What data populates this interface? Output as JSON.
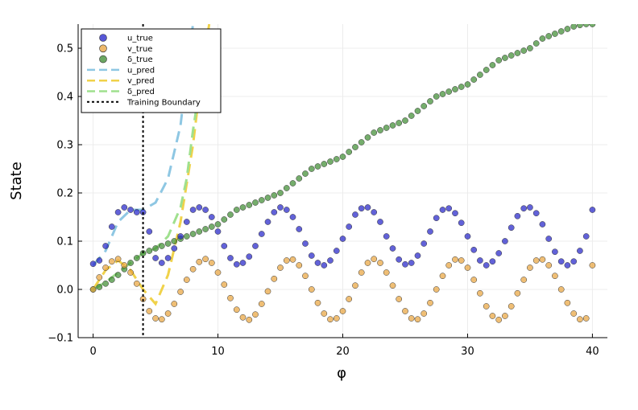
{
  "chart_data": {
    "type": "scatter",
    "title": "",
    "xlabel": "φ",
    "ylabel": "State",
    "xlim": [
      -1.2,
      41.2
    ],
    "ylim": [
      -0.1,
      0.55
    ],
    "xticks": [
      0,
      10,
      20,
      30,
      40
    ],
    "xtick_labels": [
      "0",
      "10",
      "20",
      "30",
      "40"
    ],
    "yticks": [
      -0.1,
      0.0,
      0.1,
      0.2,
      0.3,
      0.4,
      0.5
    ],
    "ytick_labels": [
      "−0.1",
      "0.0",
      "0.1",
      "0.2",
      "0.3",
      "0.4",
      "0.5"
    ],
    "grid": true,
    "legend_position": "top-left",
    "training_boundary_x": 4.0,
    "series": [
      {
        "name": "u_true",
        "kind": "scatter",
        "color": "#1f1fc8",
        "points": [
          [
            0,
            0.053
          ],
          [
            0.5,
            0.06
          ],
          [
            1.0,
            0.09
          ],
          [
            1.5,
            0.13
          ],
          [
            2.0,
            0.16
          ],
          [
            2.5,
            0.17
          ],
          [
            3.0,
            0.165
          ],
          [
            3.5,
            0.16
          ],
          [
            4.0,
            0.16
          ],
          [
            4.5,
            0.12
          ],
          [
            5.0,
            0.065
          ],
          [
            5.5,
            0.055
          ],
          [
            6.0,
            0.065
          ],
          [
            6.5,
            0.085
          ],
          [
            7.0,
            0.11
          ],
          [
            7.5,
            0.14
          ],
          [
            8.0,
            0.165
          ],
          [
            8.5,
            0.17
          ],
          [
            9.0,
            0.165
          ],
          [
            9.5,
            0.15
          ],
          [
            10.0,
            0.12
          ],
          [
            10.5,
            0.09
          ],
          [
            11.0,
            0.065
          ],
          [
            11.5,
            0.052
          ],
          [
            12.0,
            0.055
          ],
          [
            12.5,
            0.068
          ],
          [
            13.0,
            0.09
          ],
          [
            13.5,
            0.115
          ],
          [
            14.0,
            0.14
          ],
          [
            14.5,
            0.16
          ],
          [
            15.0,
            0.17
          ],
          [
            15.5,
            0.165
          ],
          [
            16.0,
            0.15
          ],
          [
            16.5,
            0.125
          ],
          [
            17.0,
            0.095
          ],
          [
            17.5,
            0.07
          ],
          [
            18.0,
            0.055
          ],
          [
            18.5,
            0.05
          ],
          [
            19.0,
            0.06
          ],
          [
            19.5,
            0.08
          ],
          [
            20.0,
            0.105
          ],
          [
            20.5,
            0.13
          ],
          [
            21.0,
            0.155
          ],
          [
            21.5,
            0.168
          ],
          [
            22.0,
            0.17
          ],
          [
            22.5,
            0.16
          ],
          [
            23.0,
            0.14
          ],
          [
            23.5,
            0.11
          ],
          [
            24.0,
            0.085
          ],
          [
            24.5,
            0.062
          ],
          [
            25.0,
            0.052
          ],
          [
            25.5,
            0.055
          ],
          [
            26.0,
            0.07
          ],
          [
            26.5,
            0.095
          ],
          [
            27.0,
            0.12
          ],
          [
            27.5,
            0.148
          ],
          [
            28.0,
            0.165
          ],
          [
            28.5,
            0.168
          ],
          [
            29.0,
            0.158
          ],
          [
            29.5,
            0.138
          ],
          [
            30.0,
            0.11
          ],
          [
            30.5,
            0.082
          ],
          [
            31.0,
            0.06
          ],
          [
            31.5,
            0.05
          ],
          [
            32.0,
            0.058
          ],
          [
            32.5,
            0.075
          ],
          [
            33.0,
            0.1
          ],
          [
            33.5,
            0.128
          ],
          [
            34.0,
            0.152
          ],
          [
            34.5,
            0.168
          ],
          [
            35.0,
            0.17
          ],
          [
            35.5,
            0.158
          ],
          [
            36.0,
            0.135
          ],
          [
            36.5,
            0.105
          ],
          [
            37.0,
            0.078
          ],
          [
            37.5,
            0.058
          ],
          [
            38.0,
            0.05
          ],
          [
            38.5,
            0.058
          ],
          [
            39.0,
            0.08
          ],
          [
            39.5,
            0.11
          ],
          [
            40.0,
            0.165
          ]
        ]
      },
      {
        "name": "v_true",
        "kind": "scatter",
        "color": "#e8a23a",
        "points": [
          [
            0,
            0.0
          ],
          [
            0.5,
            0.025
          ],
          [
            1.0,
            0.045
          ],
          [
            1.5,
            0.058
          ],
          [
            2.0,
            0.063
          ],
          [
            2.5,
            0.05
          ],
          [
            3.0,
            0.035
          ],
          [
            3.5,
            0.012
          ],
          [
            4.0,
            -0.02
          ],
          [
            4.5,
            -0.045
          ],
          [
            5.0,
            -0.06
          ],
          [
            5.5,
            -0.062
          ],
          [
            6.0,
            -0.05
          ],
          [
            6.5,
            -0.03
          ],
          [
            7.0,
            -0.005
          ],
          [
            7.5,
            0.02
          ],
          [
            8.0,
            0.042
          ],
          [
            8.5,
            0.057
          ],
          [
            9.0,
            0.063
          ],
          [
            9.5,
            0.055
          ],
          [
            10.0,
            0.035
          ],
          [
            10.5,
            0.01
          ],
          [
            11.0,
            -0.018
          ],
          [
            11.5,
            -0.042
          ],
          [
            12.0,
            -0.058
          ],
          [
            12.5,
            -0.063
          ],
          [
            13.0,
            -0.052
          ],
          [
            13.5,
            -0.03
          ],
          [
            14.0,
            -0.004
          ],
          [
            14.5,
            0.022
          ],
          [
            15.0,
            0.045
          ],
          [
            15.5,
            0.06
          ],
          [
            16.0,
            0.062
          ],
          [
            16.5,
            0.05
          ],
          [
            17.0,
            0.028
          ],
          [
            17.5,
            0.0
          ],
          [
            18.0,
            -0.028
          ],
          [
            18.5,
            -0.05
          ],
          [
            19.0,
            -0.062
          ],
          [
            19.5,
            -0.06
          ],
          [
            20.0,
            -0.045
          ],
          [
            20.5,
            -0.02
          ],
          [
            21.0,
            0.008
          ],
          [
            21.5,
            0.035
          ],
          [
            22.0,
            0.055
          ],
          [
            22.5,
            0.063
          ],
          [
            23.0,
            0.055
          ],
          [
            23.5,
            0.035
          ],
          [
            24.0,
            0.008
          ],
          [
            24.5,
            -0.02
          ],
          [
            25.0,
            -0.045
          ],
          [
            25.5,
            -0.06
          ],
          [
            26.0,
            -0.062
          ],
          [
            26.5,
            -0.05
          ],
          [
            27.0,
            -0.028
          ],
          [
            27.5,
            0.0
          ],
          [
            28.0,
            0.028
          ],
          [
            28.5,
            0.05
          ],
          [
            29.0,
            0.062
          ],
          [
            29.5,
            0.06
          ],
          [
            30.0,
            0.045
          ],
          [
            30.5,
            0.02
          ],
          [
            31.0,
            -0.008
          ],
          [
            31.5,
            -0.035
          ],
          [
            32.0,
            -0.055
          ],
          [
            32.5,
            -0.063
          ],
          [
            33.0,
            -0.055
          ],
          [
            33.5,
            -0.035
          ],
          [
            34.0,
            -0.008
          ],
          [
            34.5,
            0.02
          ],
          [
            35.0,
            0.045
          ],
          [
            35.5,
            0.06
          ],
          [
            36.0,
            0.062
          ],
          [
            36.5,
            0.05
          ],
          [
            37.0,
            0.028
          ],
          [
            37.5,
            0.0
          ],
          [
            38.0,
            -0.028
          ],
          [
            38.5,
            -0.05
          ],
          [
            39.0,
            -0.062
          ],
          [
            39.5,
            -0.06
          ],
          [
            40.0,
            0.05
          ]
        ]
      },
      {
        "name": "δ_true",
        "kind": "scatter",
        "color": "#3a8a2e",
        "points": [
          [
            0,
            0.0
          ],
          [
            0.5,
            0.005
          ],
          [
            1.0,
            0.012
          ],
          [
            1.5,
            0.02
          ],
          [
            2.0,
            0.03
          ],
          [
            2.5,
            0.042
          ],
          [
            3.0,
            0.055
          ],
          [
            3.5,
            0.065
          ],
          [
            4.0,
            0.075
          ],
          [
            4.5,
            0.08
          ],
          [
            5.0,
            0.085
          ],
          [
            5.5,
            0.09
          ],
          [
            6.0,
            0.095
          ],
          [
            6.5,
            0.1
          ],
          [
            7.0,
            0.105
          ],
          [
            7.5,
            0.11
          ],
          [
            8.0,
            0.115
          ],
          [
            8.5,
            0.12
          ],
          [
            9.0,
            0.125
          ],
          [
            9.5,
            0.13
          ],
          [
            10.0,
            0.135
          ],
          [
            10.5,
            0.145
          ],
          [
            11.0,
            0.155
          ],
          [
            11.5,
            0.165
          ],
          [
            12.0,
            0.17
          ],
          [
            12.5,
            0.175
          ],
          [
            13.0,
            0.18
          ],
          [
            13.5,
            0.185
          ],
          [
            14.0,
            0.19
          ],
          [
            14.5,
            0.195
          ],
          [
            15.0,
            0.2
          ],
          [
            15.5,
            0.21
          ],
          [
            16.0,
            0.22
          ],
          [
            16.5,
            0.23
          ],
          [
            17.0,
            0.24
          ],
          [
            17.5,
            0.25
          ],
          [
            18.0,
            0.255
          ],
          [
            18.5,
            0.26
          ],
          [
            19.0,
            0.265
          ],
          [
            19.5,
            0.27
          ],
          [
            20.0,
            0.275
          ],
          [
            20.5,
            0.285
          ],
          [
            21.0,
            0.295
          ],
          [
            21.5,
            0.305
          ],
          [
            22.0,
            0.315
          ],
          [
            22.5,
            0.325
          ],
          [
            23.0,
            0.33
          ],
          [
            23.5,
            0.335
          ],
          [
            24.0,
            0.34
          ],
          [
            24.5,
            0.345
          ],
          [
            25.0,
            0.35
          ],
          [
            25.5,
            0.36
          ],
          [
            26.0,
            0.37
          ],
          [
            26.5,
            0.38
          ],
          [
            27.0,
            0.39
          ],
          [
            27.5,
            0.4
          ],
          [
            28.0,
            0.405
          ],
          [
            28.5,
            0.41
          ],
          [
            29.0,
            0.415
          ],
          [
            29.5,
            0.42
          ],
          [
            30.0,
            0.425
          ],
          [
            30.5,
            0.435
          ],
          [
            31.0,
            0.445
          ],
          [
            31.5,
            0.455
          ],
          [
            32.0,
            0.465
          ],
          [
            32.5,
            0.475
          ],
          [
            33.0,
            0.48
          ],
          [
            33.5,
            0.485
          ],
          [
            34.0,
            0.49
          ],
          [
            34.5,
            0.495
          ],
          [
            35.0,
            0.5
          ],
          [
            35.5,
            0.51
          ],
          [
            36.0,
            0.52
          ],
          [
            36.5,
            0.525
          ],
          [
            37.0,
            0.53
          ],
          [
            37.5,
            0.535
          ],
          [
            38.0,
            0.54
          ],
          [
            38.5,
            0.545
          ],
          [
            39.0,
            0.548
          ],
          [
            39.5,
            0.55
          ],
          [
            40.0,
            0.55
          ]
        ]
      },
      {
        "name": "u_pred",
        "kind": "line",
        "dash": "dashed",
        "color": "#8ec7e3",
        "points": [
          [
            0,
            0.05
          ],
          [
            1,
            0.08
          ],
          [
            2,
            0.14
          ],
          [
            3,
            0.165
          ],
          [
            4,
            0.165
          ],
          [
            5,
            0.18
          ],
          [
            6,
            0.23
          ],
          [
            7,
            0.34
          ],
          [
            7.5,
            0.45
          ],
          [
            8.0,
            0.55
          ]
        ]
      },
      {
        "name": "v_pred",
        "kind": "line",
        "dash": "dashed",
        "color": "#f0d24a",
        "points": [
          [
            0,
            0.0
          ],
          [
            1,
            0.04
          ],
          [
            2,
            0.06
          ],
          [
            3,
            0.04
          ],
          [
            4,
            0.0
          ],
          [
            5,
            -0.03
          ],
          [
            6,
            0.03
          ],
          [
            7,
            0.14
          ],
          [
            8,
            0.3
          ],
          [
            8.7,
            0.45
          ],
          [
            9.3,
            0.55
          ]
        ]
      },
      {
        "name": "δ_pred",
        "kind": "line",
        "dash": "dashed",
        "color": "#9fe08e",
        "points": [
          [
            0,
            0.0
          ],
          [
            1,
            0.015
          ],
          [
            2,
            0.035
          ],
          [
            3,
            0.055
          ],
          [
            4,
            0.075
          ],
          [
            5,
            0.085
          ],
          [
            6,
            0.11
          ],
          [
            7,
            0.17
          ],
          [
            7.5,
            0.23
          ],
          [
            8,
            0.33
          ],
          [
            8.3,
            0.38
          ]
        ]
      },
      {
        "name": "Training Boundary",
        "kind": "vline",
        "dash": "dotted",
        "color": "#000000",
        "x": 4.0
      }
    ]
  }
}
